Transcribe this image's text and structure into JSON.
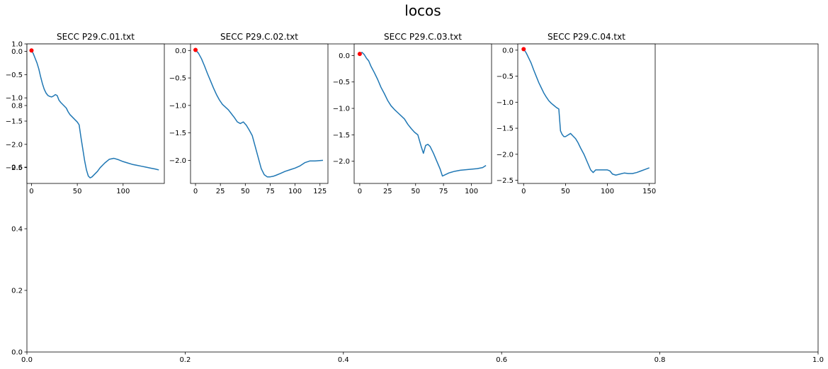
{
  "suptitle": "locos",
  "chart_data": {
    "type": "line",
    "title": "locos",
    "background_axes": {
      "x_ticks": [
        "0.0",
        "0.2",
        "0.4",
        "0.6",
        "0.8",
        "1.0"
      ],
      "y_ticks": [
        "0.0",
        "0.2",
        "0.4",
        "0.6",
        "0.8",
        "1.0"
      ],
      "xlim": [
        0,
        1
      ],
      "ylim": [
        0,
        1
      ]
    },
    "colors": {
      "line": "#1f77b4",
      "marker": "#ff0000"
    },
    "panels": [
      {
        "title": "SECC P29.C.01.txt",
        "xlim": [
          -5,
          145
        ],
        "ylim": [
          -2.84,
          0.16
        ],
        "x_ticks": [
          0,
          50,
          100
        ],
        "y_ticks": [
          0.0,
          -0.5,
          -1.0,
          -1.5,
          -2.0,
          -2.5
        ],
        "y_tick_labels": [
          "0.0",
          "−0.5",
          "−1.0",
          "−1.5",
          "−2.0",
          "−2.5"
        ],
        "start_marker": [
          0,
          0.02
        ],
        "series": [
          {
            "x": [
              0,
              2,
              4,
              6,
              8,
              10,
              12,
              14,
              16,
              18,
              20,
              22,
              24,
              26,
              28,
              30,
              32,
              34,
              36,
              38,
              40,
              42,
              44,
              46,
              48,
              50,
              52,
              54,
              56,
              58,
              60,
              62,
              64,
              66,
              68,
              70,
              72,
              75,
              80,
              85,
              90,
              95,
              100,
              105,
              110,
              115,
              120,
              125,
              130,
              135,
              139
            ],
            "y": [
              0.02,
              -0.05,
              -0.15,
              -0.25,
              -0.38,
              -0.55,
              -0.7,
              -0.82,
              -0.9,
              -0.95,
              -0.97,
              -0.98,
              -0.96,
              -0.93,
              -0.95,
              -1.05,
              -1.1,
              -1.14,
              -1.18,
              -1.22,
              -1.3,
              -1.36,
              -1.4,
              -1.44,
              -1.48,
              -1.52,
              -1.58,
              -1.85,
              -2.1,
              -2.35,
              -2.55,
              -2.68,
              -2.72,
              -2.7,
              -2.66,
              -2.62,
              -2.58,
              -2.5,
              -2.4,
              -2.32,
              -2.3,
              -2.33,
              -2.37,
              -2.4,
              -2.43,
              -2.45,
              -2.47,
              -2.49,
              -2.51,
              -2.53,
              -2.55
            ]
          }
        ]
      },
      {
        "title": "SECC P29.C.02.txt",
        "xlim": [
          -5,
          133
        ],
        "ylim": [
          -2.42,
          0.12
        ],
        "x_ticks": [
          0,
          25,
          50,
          75,
          100,
          125
        ],
        "y_ticks": [
          0.0,
          -0.5,
          -1.0,
          -1.5,
          -2.0
        ],
        "y_tick_labels": [
          "0.0",
          "−0.5",
          "−1.0",
          "−1.5",
          "−2.0"
        ],
        "start_marker": [
          0,
          0.01
        ],
        "series": [
          {
            "x": [
              0,
              3,
              6,
              9,
              12,
              15,
              18,
              21,
              24,
              27,
              30,
              33,
              36,
              39,
              42,
              45,
              48,
              51,
              54,
              57,
              60,
              63,
              66,
              69,
              72,
              75,
              78,
              81,
              85,
              90,
              95,
              100,
              105,
              110,
              115,
              120,
              128
            ],
            "y": [
              0.01,
              -0.05,
              -0.15,
              -0.28,
              -0.42,
              -0.55,
              -0.68,
              -0.8,
              -0.9,
              -0.98,
              -1.03,
              -1.08,
              -1.15,
              -1.22,
              -1.3,
              -1.33,
              -1.3,
              -1.36,
              -1.45,
              -1.55,
              -1.75,
              -1.95,
              -2.15,
              -2.26,
              -2.3,
              -2.3,
              -2.29,
              -2.27,
              -2.24,
              -2.2,
              -2.17,
              -2.14,
              -2.1,
              -2.04,
              -2.01,
              -2.01,
              -2.0
            ]
          }
        ]
      },
      {
        "title": "SECC P29.C.03.txt",
        "xlim": [
          -5,
          118
        ],
        "ylim": [
          -2.42,
          0.22
        ],
        "x_ticks": [
          0,
          25,
          50,
          75,
          100
        ],
        "y_ticks": [
          0.0,
          -0.5,
          -1.0,
          -1.5,
          -2.0
        ],
        "y_tick_labels": [
          "0.0",
          "−0.5",
          "−1.0",
          "−1.5",
          "−2.0"
        ],
        "start_marker": [
          0,
          0.03
        ],
        "series": [
          {
            "x": [
              0,
              2,
              4,
              6,
              8,
              10,
              13,
              16,
              19,
              22,
              25,
              28,
              31,
              34,
              37,
              40,
              43,
              46,
              49,
              52,
              55,
              57,
              59,
              61,
              63,
              66,
              69,
              72,
              74,
              76,
              80,
              85,
              90,
              95,
              100,
              105,
              110,
              113
            ],
            "y": [
              0.03,
              0.06,
              0.02,
              -0.05,
              -0.1,
              -0.2,
              -0.32,
              -0.45,
              -0.6,
              -0.72,
              -0.85,
              -0.95,
              -1.02,
              -1.08,
              -1.14,
              -1.2,
              -1.3,
              -1.38,
              -1.45,
              -1.5,
              -1.72,
              -1.85,
              -1.7,
              -1.68,
              -1.72,
              -1.85,
              -2.0,
              -2.15,
              -2.28,
              -2.26,
              -2.22,
              -2.19,
              -2.17,
              -2.16,
              -2.15,
              -2.14,
              -2.12,
              -2.08
            ]
          }
        ]
      },
      {
        "title": "SECC P29.C.04.txt",
        "xlim": [
          -7,
          157
        ],
        "ylim": [
          -2.56,
          0.12
        ],
        "x_ticks": [
          0,
          50,
          100,
          150
        ],
        "y_ticks": [
          0.0,
          -0.5,
          -1.0,
          -1.5,
          -2.0,
          -2.5
        ],
        "y_tick_labels": [
          "0.0",
          "−0.5",
          "−1.0",
          "−1.5",
          "−2.0",
          "−2.5"
        ],
        "start_marker": [
          0,
          0.02
        ],
        "series": [
          {
            "x": [
              0,
              3,
              6,
              9,
              12,
              15,
              18,
              21,
              24,
              27,
              30,
              33,
              36,
              39,
              42,
              44,
              46,
              48,
              50,
              53,
              56,
              59,
              62,
              65,
              68,
              72,
              76,
              80,
              83,
              86,
              90,
              95,
              100,
              103,
              106,
              110,
              115,
              120,
              125,
              130,
              135,
              140,
              145,
              150
            ],
            "y": [
              0.02,
              -0.05,
              -0.15,
              -0.25,
              -0.38,
              -0.5,
              -0.62,
              -0.72,
              -0.82,
              -0.9,
              -0.97,
              -1.02,
              -1.06,
              -1.1,
              -1.13,
              -1.55,
              -1.62,
              -1.66,
              -1.66,
              -1.63,
              -1.6,
              -1.65,
              -1.7,
              -1.78,
              -1.88,
              -2.0,
              -2.15,
              -2.3,
              -2.35,
              -2.3,
              -2.3,
              -2.3,
              -2.3,
              -2.32,
              -2.38,
              -2.4,
              -2.38,
              -2.36,
              -2.37,
              -2.37,
              -2.35,
              -2.32,
              -2.29,
              -2.26
            ]
          }
        ]
      }
    ]
  }
}
